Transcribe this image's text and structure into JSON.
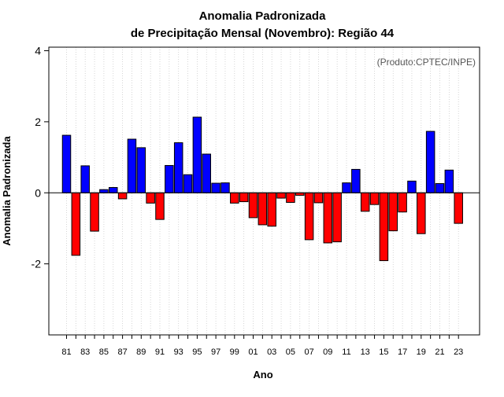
{
  "chart_data": {
    "type": "bar",
    "title": "Anomalia Padronizada",
    "subtitle": "de Precipitação Mensal (Novembro): Região 44",
    "annotation": "(Produto:CPTEC/INPE)",
    "xlabel": "Ano",
    "ylabel": "Anomalia Padronizada",
    "ylim": [
      -4,
      4.1
    ],
    "yticks": [
      -2,
      0,
      2,
      4
    ],
    "grid": "vertical dotted",
    "positive_color": "#0000ff",
    "negative_color": "#ff0000",
    "categories": [
      "81",
      "82",
      "83",
      "84",
      "85",
      "86",
      "87",
      "88",
      "89",
      "90",
      "91",
      "92",
      "93",
      "94",
      "95",
      "96",
      "97",
      "98",
      "99",
      "00",
      "01",
      "02",
      "03",
      "04",
      "05",
      "06",
      "07",
      "08",
      "09",
      "10",
      "11",
      "12",
      "13",
      "14",
      "15",
      "16",
      "17",
      "18",
      "19",
      "20",
      "21",
      "22",
      "23"
    ],
    "xtick_labels": [
      "81",
      "83",
      "85",
      "87",
      "89",
      "91",
      "93",
      "95",
      "97",
      "99",
      "01",
      "03",
      "05",
      "07",
      "09",
      "11",
      "13",
      "15",
      "17",
      "19",
      "21",
      "23"
    ],
    "values": [
      1.62,
      -1.76,
      0.76,
      -1.08,
      0.09,
      0.15,
      -0.17,
      1.51,
      1.27,
      -0.29,
      -0.75,
      0.77,
      1.41,
      0.51,
      2.13,
      1.09,
      0.27,
      0.28,
      -0.29,
      -0.25,
      -0.7,
      -0.9,
      -0.94,
      -0.15,
      -0.27,
      -0.07,
      -1.32,
      -0.28,
      -1.41,
      -1.38,
      0.28,
      0.66,
      -0.52,
      -0.33,
      -1.91,
      -1.07,
      -0.54,
      0.33,
      -1.15,
      1.73,
      0.26,
      0.64,
      -0.86
    ]
  }
}
